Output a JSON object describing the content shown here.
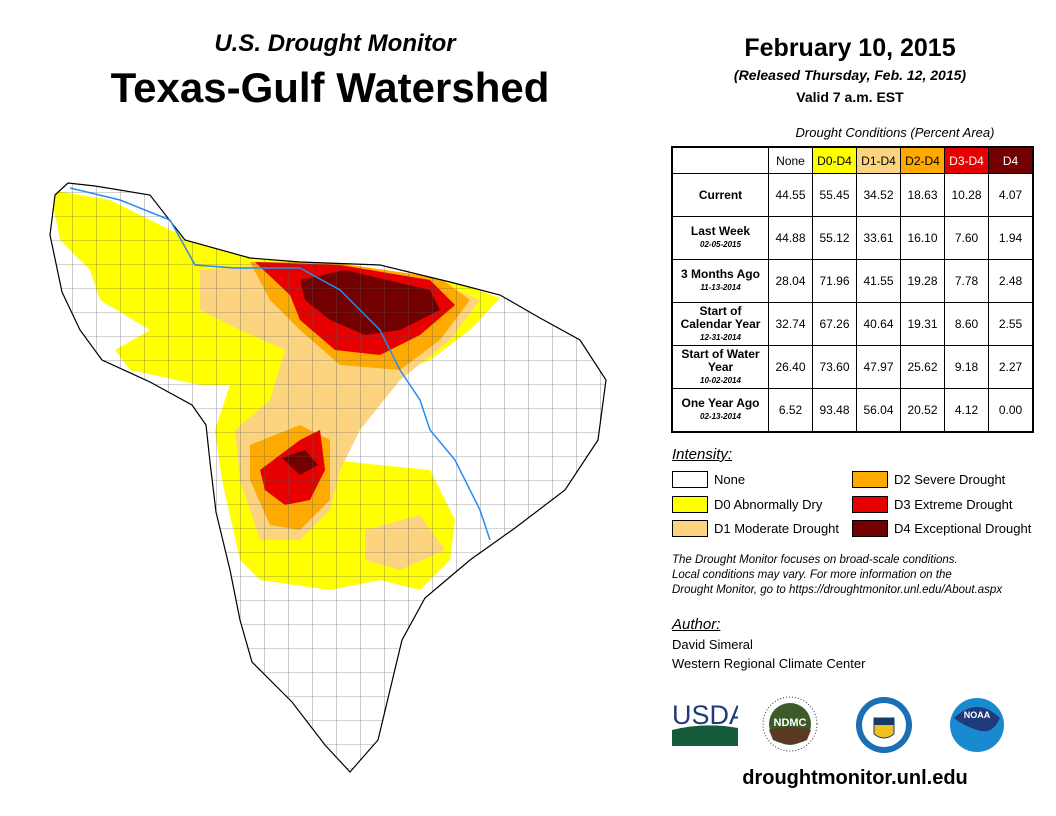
{
  "header": {
    "subtitle": "U.S. Drought Monitor",
    "title": "Texas-Gulf Watershed",
    "date": "February 10, 2015",
    "released": "(Released Thursday, Feb. 12, 2015)",
    "valid": "Valid 7 a.m. EST"
  },
  "table": {
    "caption": "Drought Conditions (Percent Area)",
    "columns": [
      "None",
      "D0-D4",
      "D1-D4",
      "D2-D4",
      "D3-D4",
      "D4"
    ],
    "rows": [
      {
        "label": "Current",
        "date": "",
        "values": [
          "44.55",
          "55.45",
          "34.52",
          "18.63",
          "10.28",
          "4.07"
        ]
      },
      {
        "label": "Last Week",
        "date": "02-05-2015",
        "values": [
          "44.88",
          "55.12",
          "33.61",
          "16.10",
          "7.60",
          "1.94"
        ]
      },
      {
        "label": "3 Months Ago",
        "date": "11-13-2014",
        "values": [
          "28.04",
          "71.96",
          "41.55",
          "19.28",
          "7.78",
          "2.48"
        ]
      },
      {
        "label": "Start of Calendar Year",
        "date": "12-31-2014",
        "values": [
          "32.74",
          "67.26",
          "40.64",
          "19.31",
          "8.60",
          "2.55"
        ]
      },
      {
        "label": "Start of Water Year",
        "date": "10-02-2014",
        "values": [
          "26.40",
          "73.60",
          "47.97",
          "25.62",
          "9.18",
          "2.27"
        ]
      },
      {
        "label": "One Year Ago",
        "date": "02-13-2014",
        "values": [
          "6.52",
          "93.48",
          "56.04",
          "20.52",
          "4.12",
          "0.00"
        ]
      }
    ]
  },
  "legend": {
    "title": "Intensity:",
    "items": [
      {
        "label": "None",
        "color": "#ffffff"
      },
      {
        "label": "D0 Abnormally Dry",
        "color": "#ffff00"
      },
      {
        "label": "D1 Moderate Drought",
        "color": "#fcd37f"
      },
      {
        "label": "D2 Severe Drought",
        "color": "#ffaa00"
      },
      {
        "label": "D3 Extreme Drought",
        "color": "#e60000"
      },
      {
        "label": "D4 Exceptional Drought",
        "color": "#730000"
      }
    ]
  },
  "note": [
    "The Drought Monitor focuses on broad-scale conditions.",
    "Local conditions may vary. For more information on the",
    "Drought Monitor, go to https://droughtmonitor.unl.edu/About.aspx"
  ],
  "author": {
    "title": "Author:",
    "name": "David Simeral",
    "org": "Western Regional Climate Center"
  },
  "logos": {
    "usda": "USDA",
    "ndmc": "NDMC",
    "noaa": "NOAA"
  },
  "url": "droughtmonitor.unl.edu"
}
